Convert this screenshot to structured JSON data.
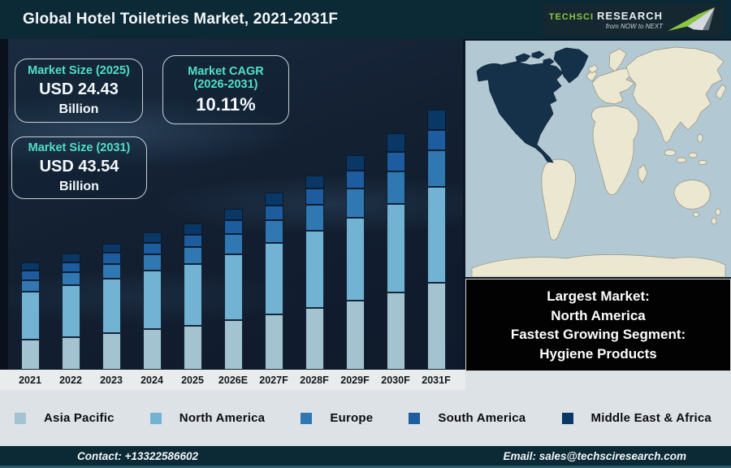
{
  "header": {
    "title": "Global Hotel Toiletries Market, 2021-2031F",
    "logo": {
      "brand_primary": "TechSci",
      "brand_secondary": "Research",
      "tagline": "from NOW to NEXT"
    }
  },
  "stats": {
    "box1": {
      "title": "Market Size (2025)",
      "value": "USD 24.43",
      "unit": "Billion"
    },
    "box2": {
      "title_line1": "Market CAGR",
      "title_line2": "(2026-2031)",
      "value": "10.11%"
    },
    "box3": {
      "title": "Market Size (2031)",
      "value": "USD 43.54",
      "unit": "Billion"
    }
  },
  "chart_data": {
    "type": "bar",
    "stacked": true,
    "title": "Global Hotel Toiletries Market, 2021-2031F",
    "unit": "USD Billion",
    "value_axis_visible": false,
    "legend_position": "bottom",
    "categories": [
      "2021",
      "2022",
      "2023",
      "2024",
      "2025",
      "2026E",
      "2027F",
      "2028F",
      "2029F",
      "2030F",
      "2031F"
    ],
    "series": [
      {
        "name": "Asia Pacific",
        "color": "#a3c3d1",
        "values": [
          5.0,
          5.5,
          6.1,
          6.8,
          7.4,
          8.3,
          9.3,
          10.4,
          11.6,
          12.9,
          14.5
        ]
      },
      {
        "name": "North America",
        "color": "#72b2d2",
        "values": [
          8.0,
          8.6,
          9.2,
          9.8,
          10.3,
          11.0,
          11.9,
          12.9,
          13.9,
          14.9,
          16.1
        ]
      },
      {
        "name": "Europe",
        "color": "#3078b1",
        "values": [
          2.0,
          2.2,
          2.4,
          2.7,
          2.9,
          3.4,
          3.8,
          4.3,
          4.8,
          5.4,
          6.1
        ]
      },
      {
        "name": "South America",
        "color": "#1d5c9e",
        "values": [
          1.6,
          1.7,
          1.85,
          2.0,
          2.05,
          2.3,
          2.5,
          2.7,
          3.0,
          3.3,
          3.5
        ]
      },
      {
        "name": "Middle East & Africa",
        "color": "#0a3866",
        "values": [
          1.4,
          1.5,
          1.6,
          1.7,
          1.78,
          1.95,
          2.1,
          2.3,
          2.6,
          3.1,
          3.34
        ]
      }
    ],
    "annotated_totals": {
      "2025": "USD 24.43 Billion",
      "2031": "USD 43.54 Billion",
      "cagr_2026_2031": "10.11%"
    }
  },
  "callout": {
    "lines": [
      "Largest Market:",
      "North America",
      "Fastest Growing Segment:",
      "Hygiene Products"
    ]
  },
  "map": {
    "highlighted_region": "North America",
    "ocean_color": "#b2c8d3",
    "land_color": "#ece7d0",
    "highlight_color": "#15314a"
  },
  "footer": {
    "contact": "Contact: +13322586602",
    "email": "Email: sales@techsciresearch.com"
  }
}
